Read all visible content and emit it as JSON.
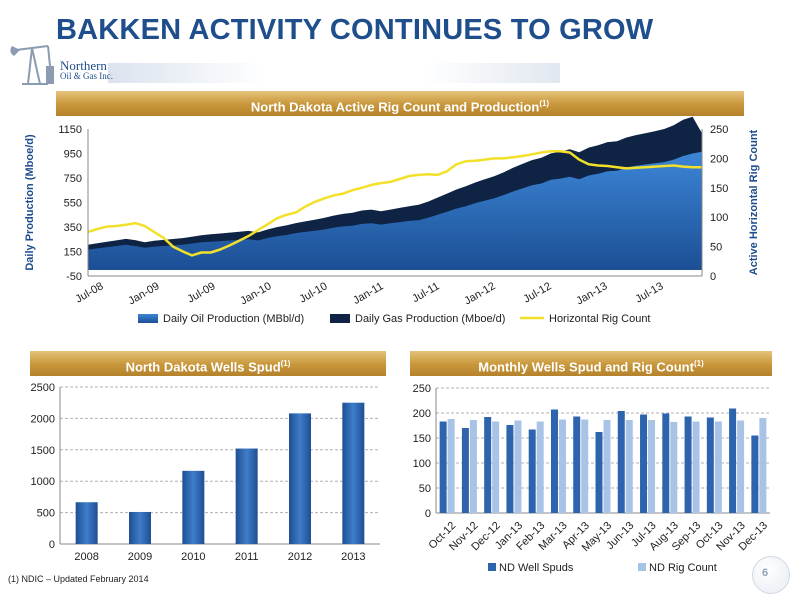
{
  "page": {
    "title": "BAKKEN ACTIVITY CONTINUES TO GROW",
    "logo_line1": "Northern",
    "logo_line2": "Oil & Gas Inc.",
    "footnote": "(1)   NDIC – Updated February 2014",
    "page_number": "6",
    "colors": {
      "title": "#1f4e8c",
      "header_gold": "#c8963a",
      "oil": "#2a6bb5",
      "gas": "#0f2444",
      "rig": "#f2e02a",
      "spud_bar": "#2e64ad",
      "rig_bar": "#a9c3e6"
    }
  },
  "chart_data": [
    {
      "type": "area",
      "title": "North Dakota Active Rig Count and Production",
      "title_sup": "(1)",
      "ylabel": "Daily Production (Mboe/d)",
      "y2label": "Active Horizontal Rig Count",
      "ylim": [
        -50,
        1150
      ],
      "y_ticks": [
        -50,
        150,
        350,
        550,
        750,
        950,
        1150
      ],
      "y_tick_labels": [
        "-50",
        "150",
        "350",
        "550",
        "750",
        "950",
        "1150"
      ],
      "y2lim": [
        0,
        250
      ],
      "y2_ticks": [
        0,
        50,
        100,
        150,
        200,
        250
      ],
      "y2_tick_labels": [
        "0",
        "50",
        "100",
        "150",
        "200",
        "250"
      ],
      "x_tick_labels": [
        "Jul-08",
        "Jan-09",
        "Jul-09",
        "Jan-10",
        "Jul-10",
        "Jan-11",
        "Jul-11",
        "Jan-12",
        "Jul-12",
        "Jan-13",
        "Jul-13"
      ],
      "legend": [
        "Daily Oil Production (MBbl/d)",
        "Daily Gas Production (Mboe/d)",
        "Horizontal Rig Count"
      ],
      "legend_position": "bottom",
      "months": [
        "2008-07",
        "2008-08",
        "2008-09",
        "2008-10",
        "2008-11",
        "2008-12",
        "2009-01",
        "2009-02",
        "2009-03",
        "2009-04",
        "2009-05",
        "2009-06",
        "2009-07",
        "2009-08",
        "2009-09",
        "2009-10",
        "2009-11",
        "2009-12",
        "2010-01",
        "2010-02",
        "2010-03",
        "2010-04",
        "2010-05",
        "2010-06",
        "2010-07",
        "2010-08",
        "2010-09",
        "2010-10",
        "2010-11",
        "2010-12",
        "2011-01",
        "2011-02",
        "2011-03",
        "2011-04",
        "2011-05",
        "2011-06",
        "2011-07",
        "2011-08",
        "2011-09",
        "2011-10",
        "2011-11",
        "2011-12",
        "2012-01",
        "2012-02",
        "2012-03",
        "2012-04",
        "2012-05",
        "2012-06",
        "2012-07",
        "2012-08",
        "2012-09",
        "2012-10",
        "2012-11",
        "2012-12",
        "2013-01",
        "2013-02",
        "2013-03",
        "2013-04",
        "2013-05",
        "2013-06",
        "2013-07",
        "2013-08",
        "2013-09",
        "2013-10",
        "2013-11",
        "2013-12"
      ],
      "series": [
        {
          "name": "Daily Oil Production (MBbl/d)",
          "values": [
            165,
            175,
            185,
            195,
            205,
            195,
            180,
            190,
            195,
            200,
            205,
            215,
            225,
            230,
            235,
            240,
            245,
            250,
            240,
            260,
            275,
            285,
            300,
            310,
            320,
            330,
            345,
            355,
            360,
            375,
            380,
            370,
            380,
            390,
            400,
            405,
            425,
            450,
            475,
            500,
            520,
            545,
            565,
            585,
            610,
            640,
            665,
            690,
            705,
            735,
            745,
            760,
            740,
            770,
            785,
            805,
            810,
            835,
            850,
            860,
            870,
            880,
            900,
            930,
            950,
            965
          ]
        },
        {
          "name": "Daily Gas Production (Mboe/d)",
          "values": [
            40,
            42,
            44,
            46,
            48,
            48,
            45,
            48,
            50,
            52,
            54,
            56,
            58,
            60,
            62,
            64,
            66,
            68,
            66,
            70,
            74,
            78,
            82,
            86,
            90,
            94,
            98,
            102,
            106,
            110,
            112,
            108,
            112,
            116,
            120,
            126,
            132,
            140,
            148,
            156,
            162,
            168,
            174,
            180,
            186,
            194,
            200,
            206,
            210,
            216,
            220,
            224,
            220,
            228,
            232,
            238,
            240,
            246,
            250,
            256,
            262,
            270,
            280,
            295,
            300,
            150
          ]
        },
        {
          "name": "Horizontal Rig Count",
          "axis": "right",
          "values": [
            75,
            80,
            84,
            85,
            87,
            90,
            85,
            75,
            65,
            50,
            42,
            35,
            40,
            40,
            45,
            52,
            60,
            68,
            78,
            88,
            98,
            104,
            108,
            118,
            126,
            132,
            137,
            140,
            146,
            150,
            155,
            158,
            160,
            165,
            170,
            172,
            173,
            172,
            178,
            190,
            195,
            196,
            198,
            200,
            200,
            202,
            204,
            207,
            210,
            212,
            212,
            210,
            198,
            190,
            188,
            187,
            185,
            183,
            184,
            185,
            186,
            187,
            188,
            186,
            185,
            185
          ]
        }
      ]
    },
    {
      "type": "bar",
      "title": "North Dakota Wells Spud",
      "title_sup": "(1)",
      "categories": [
        "2008",
        "2009",
        "2010",
        "2011",
        "2012",
        "2013"
      ],
      "values": [
        665,
        510,
        1165,
        1520,
        2080,
        2250
      ],
      "ylim": [
        0,
        2500
      ],
      "y_ticks": [
        0,
        500,
        1000,
        1500,
        2000,
        2500
      ],
      "y_tick_labels": [
        "0",
        "500",
        "1000",
        "1500",
        "2000",
        "2500"
      ]
    },
    {
      "type": "bar",
      "title": "Monthly Wells Spud and Rig Count",
      "title_sup": "(1)",
      "categories": [
        "Oct-12",
        "Nov-12",
        "Dec-12",
        "Jan-13",
        "Feb-13",
        "Mar-13",
        "Apr-13",
        "May-13",
        "Jun-13",
        "Jul-13",
        "Aug-13",
        "Sep-13",
        "Oct-13",
        "Nov-13",
        "Dec-13"
      ],
      "ylim": [
        0,
        250
      ],
      "y_ticks": [
        0,
        50,
        100,
        150,
        200,
        250
      ],
      "y_tick_labels": [
        "0",
        "50",
        "100",
        "150",
        "200",
        "250"
      ],
      "legend_position": "bottom",
      "series": [
        {
          "name": "ND Well Spuds",
          "values": [
            183,
            170,
            192,
            176,
            167,
            207,
            193,
            162,
            204,
            197,
            199,
            193,
            191,
            209,
            155
          ]
        },
        {
          "name": "ND Rig Count",
          "values": [
            188,
            186,
            183,
            185,
            183,
            187,
            187,
            186,
            186,
            186,
            182,
            183,
            183,
            185,
            190
          ]
        }
      ]
    }
  ]
}
